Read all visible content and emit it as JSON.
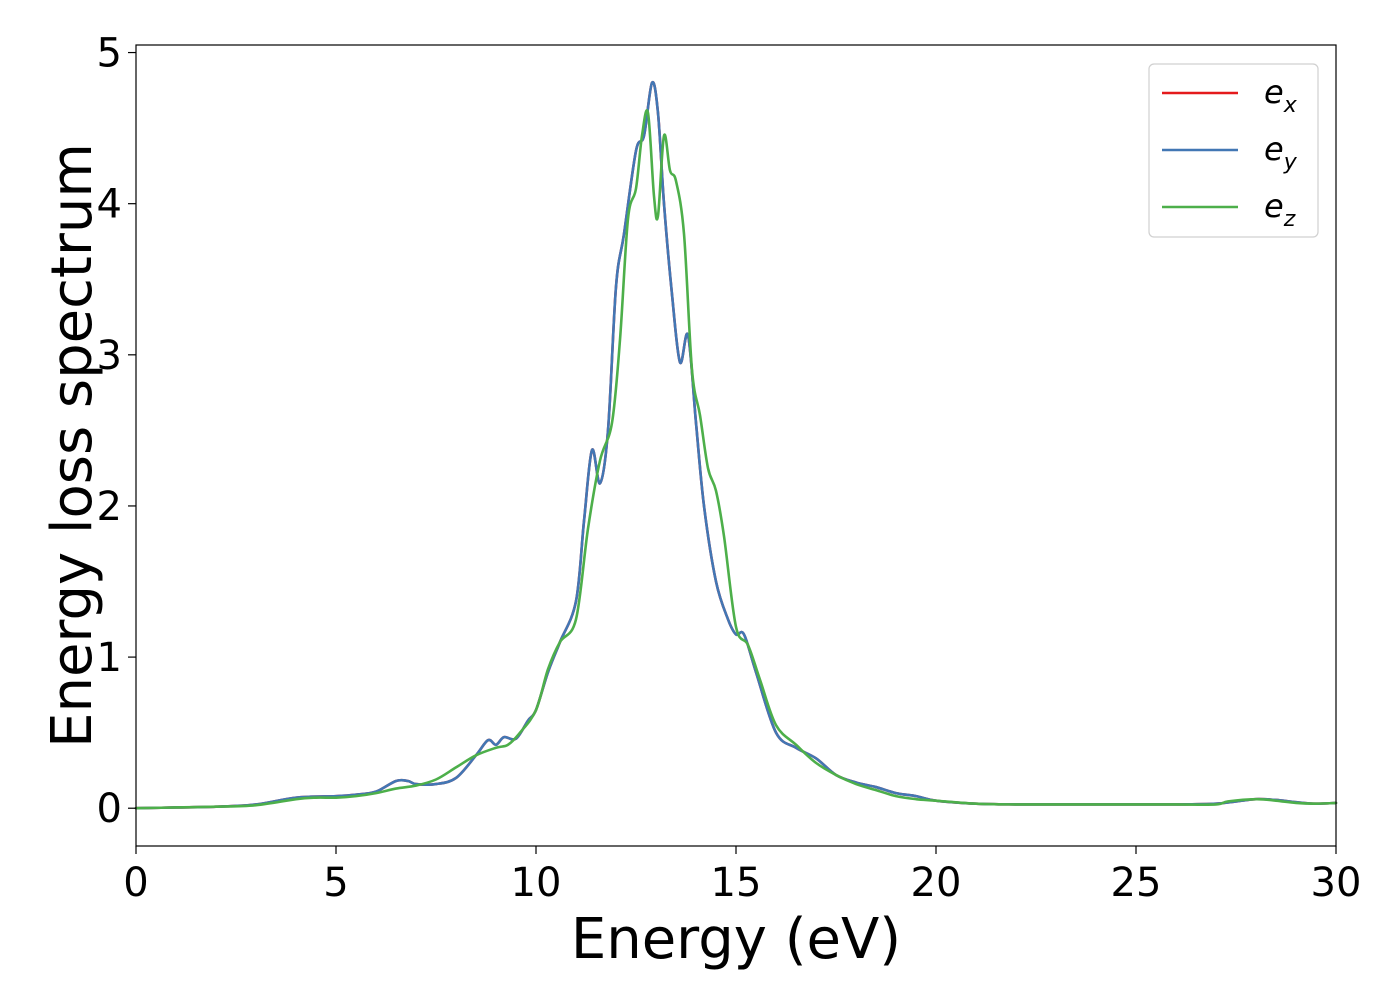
{
  "chart_data": {
    "type": "line",
    "xlabel": "Energy (eV)",
    "ylabel": "Energy loss spectrum",
    "xlim": [
      0,
      30
    ],
    "ylim": [
      -0.25,
      5.05
    ],
    "xticks": [
      0,
      5,
      10,
      15,
      20,
      25,
      30
    ],
    "xtick_labels": [
      "0",
      "5",
      "10",
      "15",
      "20",
      "25",
      "30"
    ],
    "yticks": [
      0,
      1,
      2,
      3,
      4,
      5
    ],
    "ytick_labels": [
      "0",
      "1",
      "2",
      "3",
      "4",
      "5"
    ],
    "grid": false,
    "legend_position": "top-right",
    "series": [
      {
        "name": "e",
        "sub": "x",
        "color": "#e41a1c",
        "x": [
          0,
          1,
          2,
          3,
          4,
          5,
          5.5,
          6,
          6.5,
          6.8,
          7,
          7.5,
          8,
          8.5,
          8.8,
          9,
          9.2,
          9.5,
          9.8,
          10,
          10.3,
          10.6,
          11,
          11.2,
          11.4,
          11.6,
          11.8,
          12,
          12.2,
          12.5,
          12.7,
          12.9,
          13.05,
          13.2,
          13.4,
          13.6,
          13.8,
          14,
          14.2,
          14.5,
          14.8,
          15,
          15.2,
          15.5,
          16,
          16.5,
          17,
          17.5,
          18,
          18.5,
          19,
          19.5,
          20,
          21,
          22,
          23,
          24,
          25,
          26,
          27,
          27.5,
          28,
          28.5,
          29,
          29.5,
          30
        ],
        "y": [
          0,
          0.005,
          0.01,
          0.025,
          0.07,
          0.08,
          0.09,
          0.11,
          0.18,
          0.18,
          0.16,
          0.16,
          0.2,
          0.35,
          0.45,
          0.42,
          0.47,
          0.46,
          0.58,
          0.65,
          0.9,
          1.1,
          1.37,
          1.9,
          2.37,
          2.15,
          2.5,
          3.45,
          3.8,
          4.35,
          4.45,
          4.8,
          4.6,
          4.0,
          3.4,
          2.95,
          3.13,
          2.55,
          2.0,
          1.5,
          1.25,
          1.15,
          1.15,
          0.9,
          0.5,
          0.4,
          0.33,
          0.22,
          0.17,
          0.14,
          0.1,
          0.08,
          0.05,
          0.03,
          0.025,
          0.025,
          0.025,
          0.025,
          0.025,
          0.03,
          0.045,
          0.06,
          0.055,
          0.04,
          0.03,
          0.035
        ]
      },
      {
        "name": "e",
        "sub": "y",
        "color": "#4277b4",
        "x": [
          0,
          1,
          2,
          3,
          4,
          5,
          5.5,
          6,
          6.5,
          6.8,
          7,
          7.5,
          8,
          8.5,
          8.8,
          9,
          9.2,
          9.5,
          9.8,
          10,
          10.3,
          10.6,
          11,
          11.2,
          11.4,
          11.6,
          11.8,
          12,
          12.2,
          12.5,
          12.7,
          12.9,
          13.05,
          13.2,
          13.4,
          13.6,
          13.8,
          14,
          14.2,
          14.5,
          14.8,
          15,
          15.2,
          15.5,
          16,
          16.5,
          17,
          17.5,
          18,
          18.5,
          19,
          19.5,
          20,
          21,
          22,
          23,
          24,
          25,
          26,
          27,
          27.5,
          28,
          28.5,
          29,
          29.5,
          30
        ],
        "y": [
          0,
          0.005,
          0.01,
          0.025,
          0.07,
          0.08,
          0.09,
          0.11,
          0.18,
          0.18,
          0.16,
          0.16,
          0.2,
          0.35,
          0.45,
          0.42,
          0.47,
          0.46,
          0.58,
          0.65,
          0.9,
          1.1,
          1.37,
          1.9,
          2.37,
          2.15,
          2.5,
          3.45,
          3.8,
          4.35,
          4.45,
          4.8,
          4.6,
          4.0,
          3.4,
          2.95,
          3.13,
          2.55,
          2.0,
          1.5,
          1.25,
          1.15,
          1.15,
          0.9,
          0.5,
          0.4,
          0.33,
          0.22,
          0.17,
          0.14,
          0.1,
          0.08,
          0.05,
          0.03,
          0.025,
          0.025,
          0.025,
          0.025,
          0.025,
          0.03,
          0.045,
          0.06,
          0.055,
          0.04,
          0.03,
          0.035
        ]
      },
      {
        "name": "e",
        "sub": "z",
        "color": "#4daf4a",
        "x": [
          0,
          1,
          2,
          3,
          4,
          4.5,
          5,
          5.5,
          6,
          6.5,
          7,
          7.5,
          8,
          8.5,
          9,
          9.3,
          9.6,
          10,
          10.3,
          10.6,
          11,
          11.3,
          11.6,
          11.9,
          12.1,
          12.3,
          12.5,
          12.65,
          12.8,
          12.95,
          13.05,
          13.2,
          13.35,
          13.5,
          13.7,
          13.9,
          14.1,
          14.3,
          14.5,
          14.7,
          15,
          15.3,
          15.6,
          16,
          16.5,
          17,
          17.5,
          18,
          18.5,
          19,
          19.5,
          20,
          21,
          22,
          23,
          24,
          25,
          26,
          27,
          27.3,
          28,
          28.5,
          29,
          29.5,
          30
        ],
        "y": [
          0,
          0.005,
          0.01,
          0.02,
          0.06,
          0.07,
          0.07,
          0.08,
          0.1,
          0.13,
          0.15,
          0.19,
          0.27,
          0.35,
          0.4,
          0.42,
          0.5,
          0.65,
          0.92,
          1.1,
          1.25,
          1.85,
          2.3,
          2.55,
          3.1,
          3.9,
          4.1,
          4.45,
          4.6,
          4.05,
          3.92,
          4.45,
          4.22,
          4.15,
          3.8,
          2.9,
          2.6,
          2.25,
          2.1,
          1.8,
          1.2,
          1.08,
          0.85,
          0.55,
          0.42,
          0.3,
          0.22,
          0.16,
          0.12,
          0.08,
          0.06,
          0.05,
          0.03,
          0.025,
          0.025,
          0.025,
          0.025,
          0.025,
          0.025,
          0.045,
          0.06,
          0.05,
          0.035,
          0.03,
          0.035
        ]
      }
    ]
  }
}
